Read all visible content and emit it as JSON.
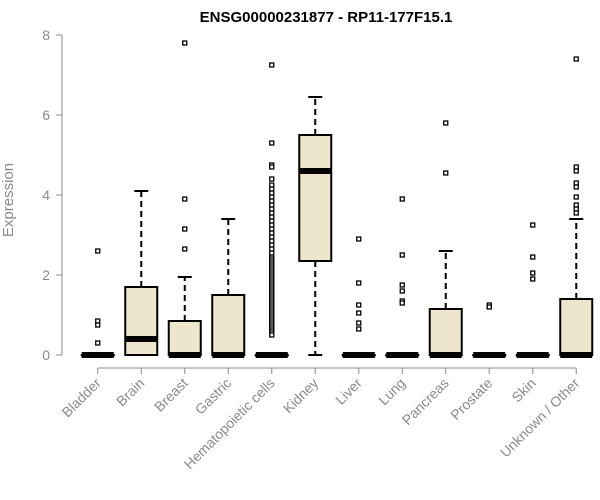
{
  "chart_data": {
    "type": "box",
    "title": "ENSG00000231877 - RP11-177F15.1",
    "ylabel": "Expression",
    "xlabel": "",
    "ylim": [
      0,
      8
    ],
    "yticks": [
      0,
      2,
      4,
      6,
      8
    ],
    "grid": false,
    "legend": "none",
    "box_fill": "#ede6cc",
    "categories": [
      "Bladder",
      "Brain",
      "Breast",
      "Gastric",
      "Hematopoietic cells",
      "Kidney",
      "Liver",
      "Lung",
      "Pancreas",
      "Prostate",
      "Skin",
      "Unknown / Other"
    ],
    "boxes": [
      {
        "q1": 0,
        "median": 0,
        "q3": 0,
        "whisker_low": 0,
        "whisker_high": 0,
        "outliers": [
          2.6,
          0.85,
          0.75,
          0.3
        ]
      },
      {
        "q1": 0,
        "median": 0.4,
        "q3": 1.7,
        "whisker_low": 0,
        "whisker_high": 4.1,
        "outliers": []
      },
      {
        "q1": 0,
        "median": 0,
        "q3": 0.85,
        "whisker_low": 0,
        "whisker_high": 1.95,
        "outliers": [
          7.8,
          3.9,
          3.15,
          2.65
        ]
      },
      {
        "q1": 0,
        "median": 0,
        "q3": 1.5,
        "whisker_low": 0,
        "whisker_high": 3.4,
        "outliers": []
      },
      {
        "q1": 0,
        "median": 0,
        "q3": 0,
        "whisker_low": 0,
        "whisker_high": 0,
        "outliers": [
          7.25,
          5.3,
          4.75,
          4.7,
          4.4,
          4.25,
          4.15,
          4.05,
          3.95,
          3.85,
          3.75,
          3.65,
          3.55,
          3.45,
          3.35,
          3.25,
          3.15,
          3.05,
          2.95,
          2.85,
          2.75,
          2.65,
          2.55,
          2.45,
          2.4,
          2.35,
          2.3,
          2.25,
          2.2,
          2.15,
          2.1,
          2.05,
          2.0,
          1.95,
          1.9,
          1.85,
          1.8,
          1.75,
          1.7,
          1.65,
          1.6,
          1.55,
          1.5,
          1.45,
          1.4,
          1.35,
          1.3,
          1.25,
          1.2,
          1.15,
          1.1,
          1.05,
          1.0,
          0.95,
          0.9,
          0.85,
          0.8,
          0.75,
          0.7,
          0.65,
          0.6,
          0.55,
          0.5
        ]
      },
      {
        "q1": 2.35,
        "median": 4.6,
        "q3": 5.5,
        "whisker_low": 0,
        "whisker_high": 6.45,
        "outliers": []
      },
      {
        "q1": 0,
        "median": 0,
        "q3": 0,
        "whisker_low": 0,
        "whisker_high": 0,
        "outliers": [
          2.9,
          1.8,
          1.25,
          1.05,
          0.8,
          0.65
        ]
      },
      {
        "q1": 0,
        "median": 0,
        "q3": 0,
        "whisker_low": 0,
        "whisker_high": 0,
        "outliers": [
          3.9,
          2.5,
          1.75,
          1.6,
          1.35,
          1.3
        ]
      },
      {
        "q1": 0,
        "median": 0,
        "q3": 1.15,
        "whisker_low": 0,
        "whisker_high": 2.6,
        "outliers": [
          5.8,
          4.55
        ]
      },
      {
        "q1": 0,
        "median": 0,
        "q3": 0,
        "whisker_low": 0,
        "whisker_high": 0,
        "outliers": [
          1.25,
          1.2
        ]
      },
      {
        "q1": 0,
        "median": 0,
        "q3": 0,
        "whisker_low": 0,
        "whisker_high": 0,
        "outliers": [
          3.25,
          2.45,
          2.05,
          1.9
        ]
      },
      {
        "q1": 0,
        "median": 0,
        "q3": 1.4,
        "whisker_low": 0,
        "whisker_high": 3.4,
        "outliers": [
          7.4,
          4.7,
          4.6,
          4.3,
          4.2,
          3.95,
          3.75,
          3.65,
          3.55
        ]
      }
    ]
  }
}
